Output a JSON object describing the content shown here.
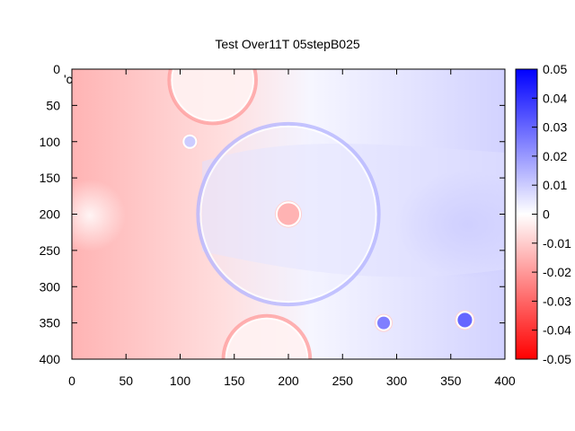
{
  "chart_data": {
    "type": "heatmap",
    "title": "Test Over11T 05stepB025",
    "stray_label": "'c",
    "xlabel": "",
    "ylabel": "",
    "xlim": [
      0,
      400
    ],
    "ylim": [
      0,
      400
    ],
    "y_inverted": true,
    "x_ticks": [
      "0",
      "50",
      "100",
      "150",
      "200",
      "250",
      "300",
      "350",
      "400"
    ],
    "y_ticks": [
      "0",
      "50",
      "100",
      "150",
      "200",
      "250",
      "300",
      "350",
      "400"
    ],
    "colorbar": {
      "range": [
        -0.05,
        0.05
      ],
      "ticks": [
        "0.05",
        "0.04",
        "0.03",
        "0.02",
        "0.01",
        "0",
        "-0.01",
        "-0.02",
        "-0.03",
        "-0.04",
        "-0.05"
      ],
      "colors": {
        "low": "#ff0000",
        "mid": "#ffffff",
        "high": "#0000ff"
      }
    },
    "features": [
      {
        "name": "large-ring",
        "cx": 200,
        "cy": 200,
        "r": 100,
        "value": 0.015
      },
      {
        "name": "top-ring",
        "cx": 130,
        "cy": 15,
        "r": 48,
        "value": -0.02
      },
      {
        "name": "bottom-ring",
        "cx": 180,
        "cy": 400,
        "r": 48,
        "value": -0.02
      },
      {
        "name": "center-dot",
        "cx": 200,
        "cy": 200,
        "r": 13,
        "value": -0.015
      },
      {
        "name": "small-dot-upper-left",
        "cx": 109,
        "cy": 100,
        "r": 7,
        "value": 0.01
      },
      {
        "name": "small-dot-lower-mid",
        "cx": 288,
        "cy": 350,
        "r": 8,
        "value": 0.025
      },
      {
        "name": "small-dot-lower-right",
        "cx": 363,
        "cy": 346,
        "r": 9,
        "value": 0.03
      }
    ]
  }
}
